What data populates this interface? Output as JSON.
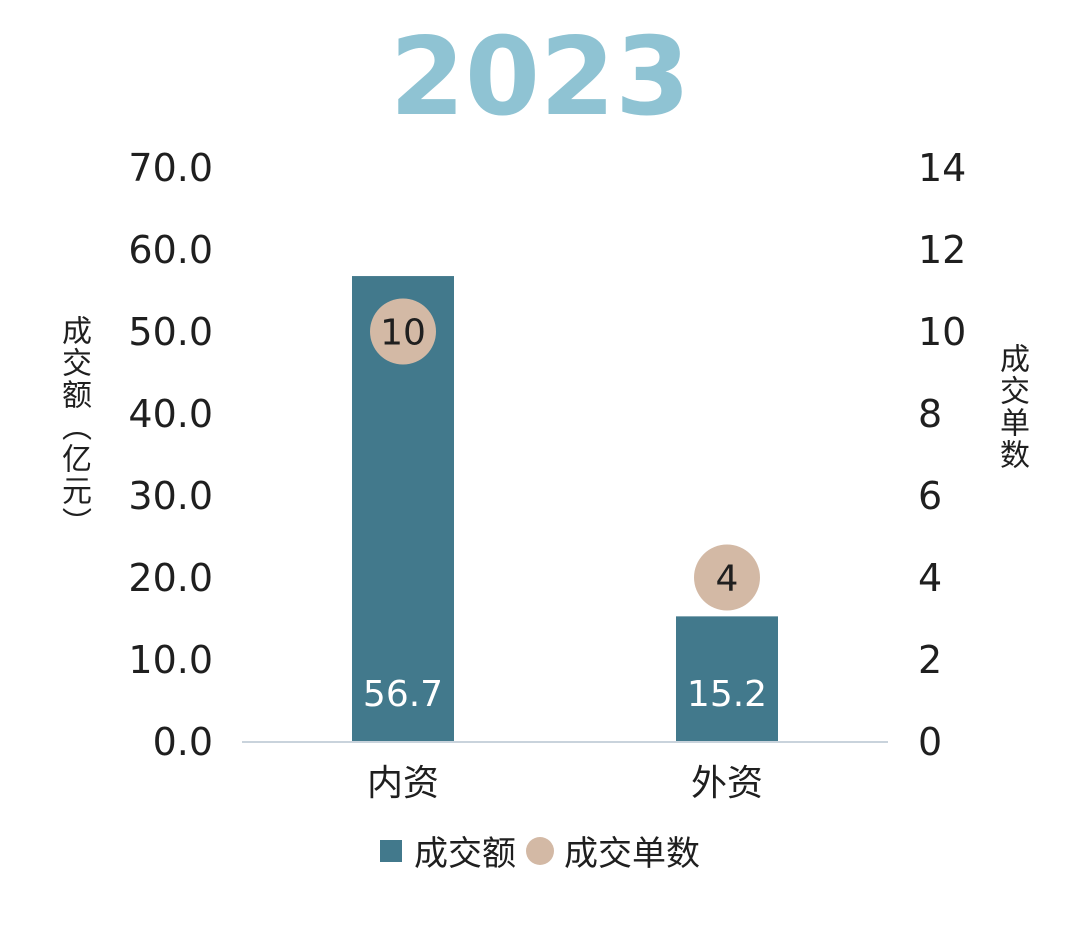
{
  "colors": {
    "title": "#8fc3d3",
    "bar": "#42798c",
    "circle": "#d3b9a5",
    "axis": "#c9d3dc",
    "bar_label": "#ffffff",
    "circle_label": "#1f1f1f"
  },
  "chart_data": {
    "type": "bar",
    "title": "2023",
    "categories": [
      "内资",
      "外资"
    ],
    "series": [
      {
        "name": "成交额",
        "kind": "bar",
        "axis": "left",
        "values": [
          56.7,
          15.2
        ],
        "labels": [
          "56.7",
          "15.2"
        ]
      },
      {
        "name": "成交单数",
        "kind": "circle",
        "axis": "right",
        "values": [
          10,
          4
        ],
        "labels": [
          "10",
          "4"
        ]
      }
    ],
    "ylabel_left": "成交额（亿元）",
    "ylabel_right": "成交单数",
    "ylim_left": [
      0,
      70
    ],
    "ylim_right": [
      0,
      14
    ],
    "yticks_left": [
      "0.0",
      "10.0",
      "20.0",
      "30.0",
      "40.0",
      "50.0",
      "60.0",
      "70.0"
    ],
    "yticks_right": [
      "0",
      "2",
      "4",
      "6",
      "8",
      "10",
      "12",
      "14"
    ],
    "grid": false,
    "legend_position": "bottom-center"
  }
}
